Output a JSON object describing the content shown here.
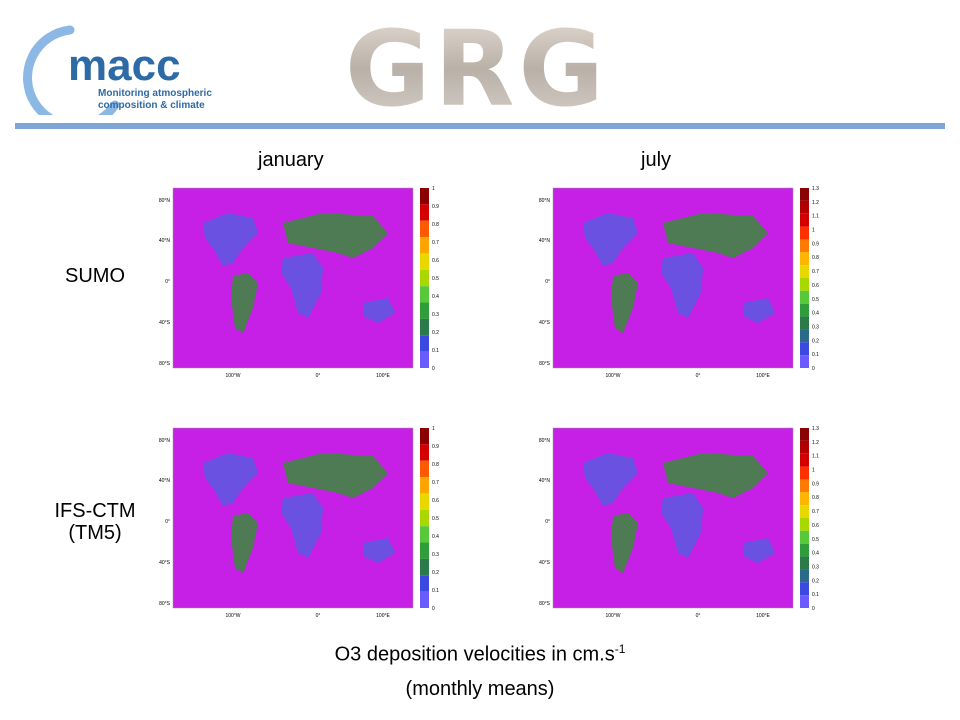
{
  "header": {
    "logo_text": "macc",
    "logo_tagline_1": "Monitoring atmospheric",
    "logo_tagline_2": "composition & climate",
    "grg_text": "GRG"
  },
  "columns": [
    "january",
    "july"
  ],
  "rows": [
    {
      "label_line1": "SUMO",
      "label_line2": ""
    },
    {
      "label_line1": "IFS-CTM",
      "label_line2": "(TM5)"
    }
  ],
  "map_axis": {
    "lat_ticks": [
      "80°N",
      "40°N",
      "0°",
      "40°S",
      "80°S"
    ],
    "lon_ticks": [
      "100°W",
      "0°",
      "100°E"
    ]
  },
  "colorbars": {
    "january": [
      "1",
      "0.9",
      "0.8",
      "0.7",
      "0.6",
      "0.5",
      "0.4",
      "0.3",
      "0.2",
      "0.1",
      "0"
    ],
    "july": [
      "1.3",
      "1.2",
      "1.1",
      "1",
      "0.9",
      "0.8",
      "0.7",
      "0.6",
      "0.5",
      "0.4",
      "0.3",
      "0.2",
      "0.1",
      "0"
    ]
  },
  "colors": {
    "ocean": "#c61fe6",
    "land_low": "#5a5ae0",
    "land_mid": "#3a8c3a",
    "accent_rule": "#7fa7d6",
    "logo_blue": "#2d6aa6"
  },
  "caption": {
    "line1_prefix": "O3 deposition velocities in cm.s",
    "line1_sup": "-1",
    "line2": "(monthly means)"
  }
}
